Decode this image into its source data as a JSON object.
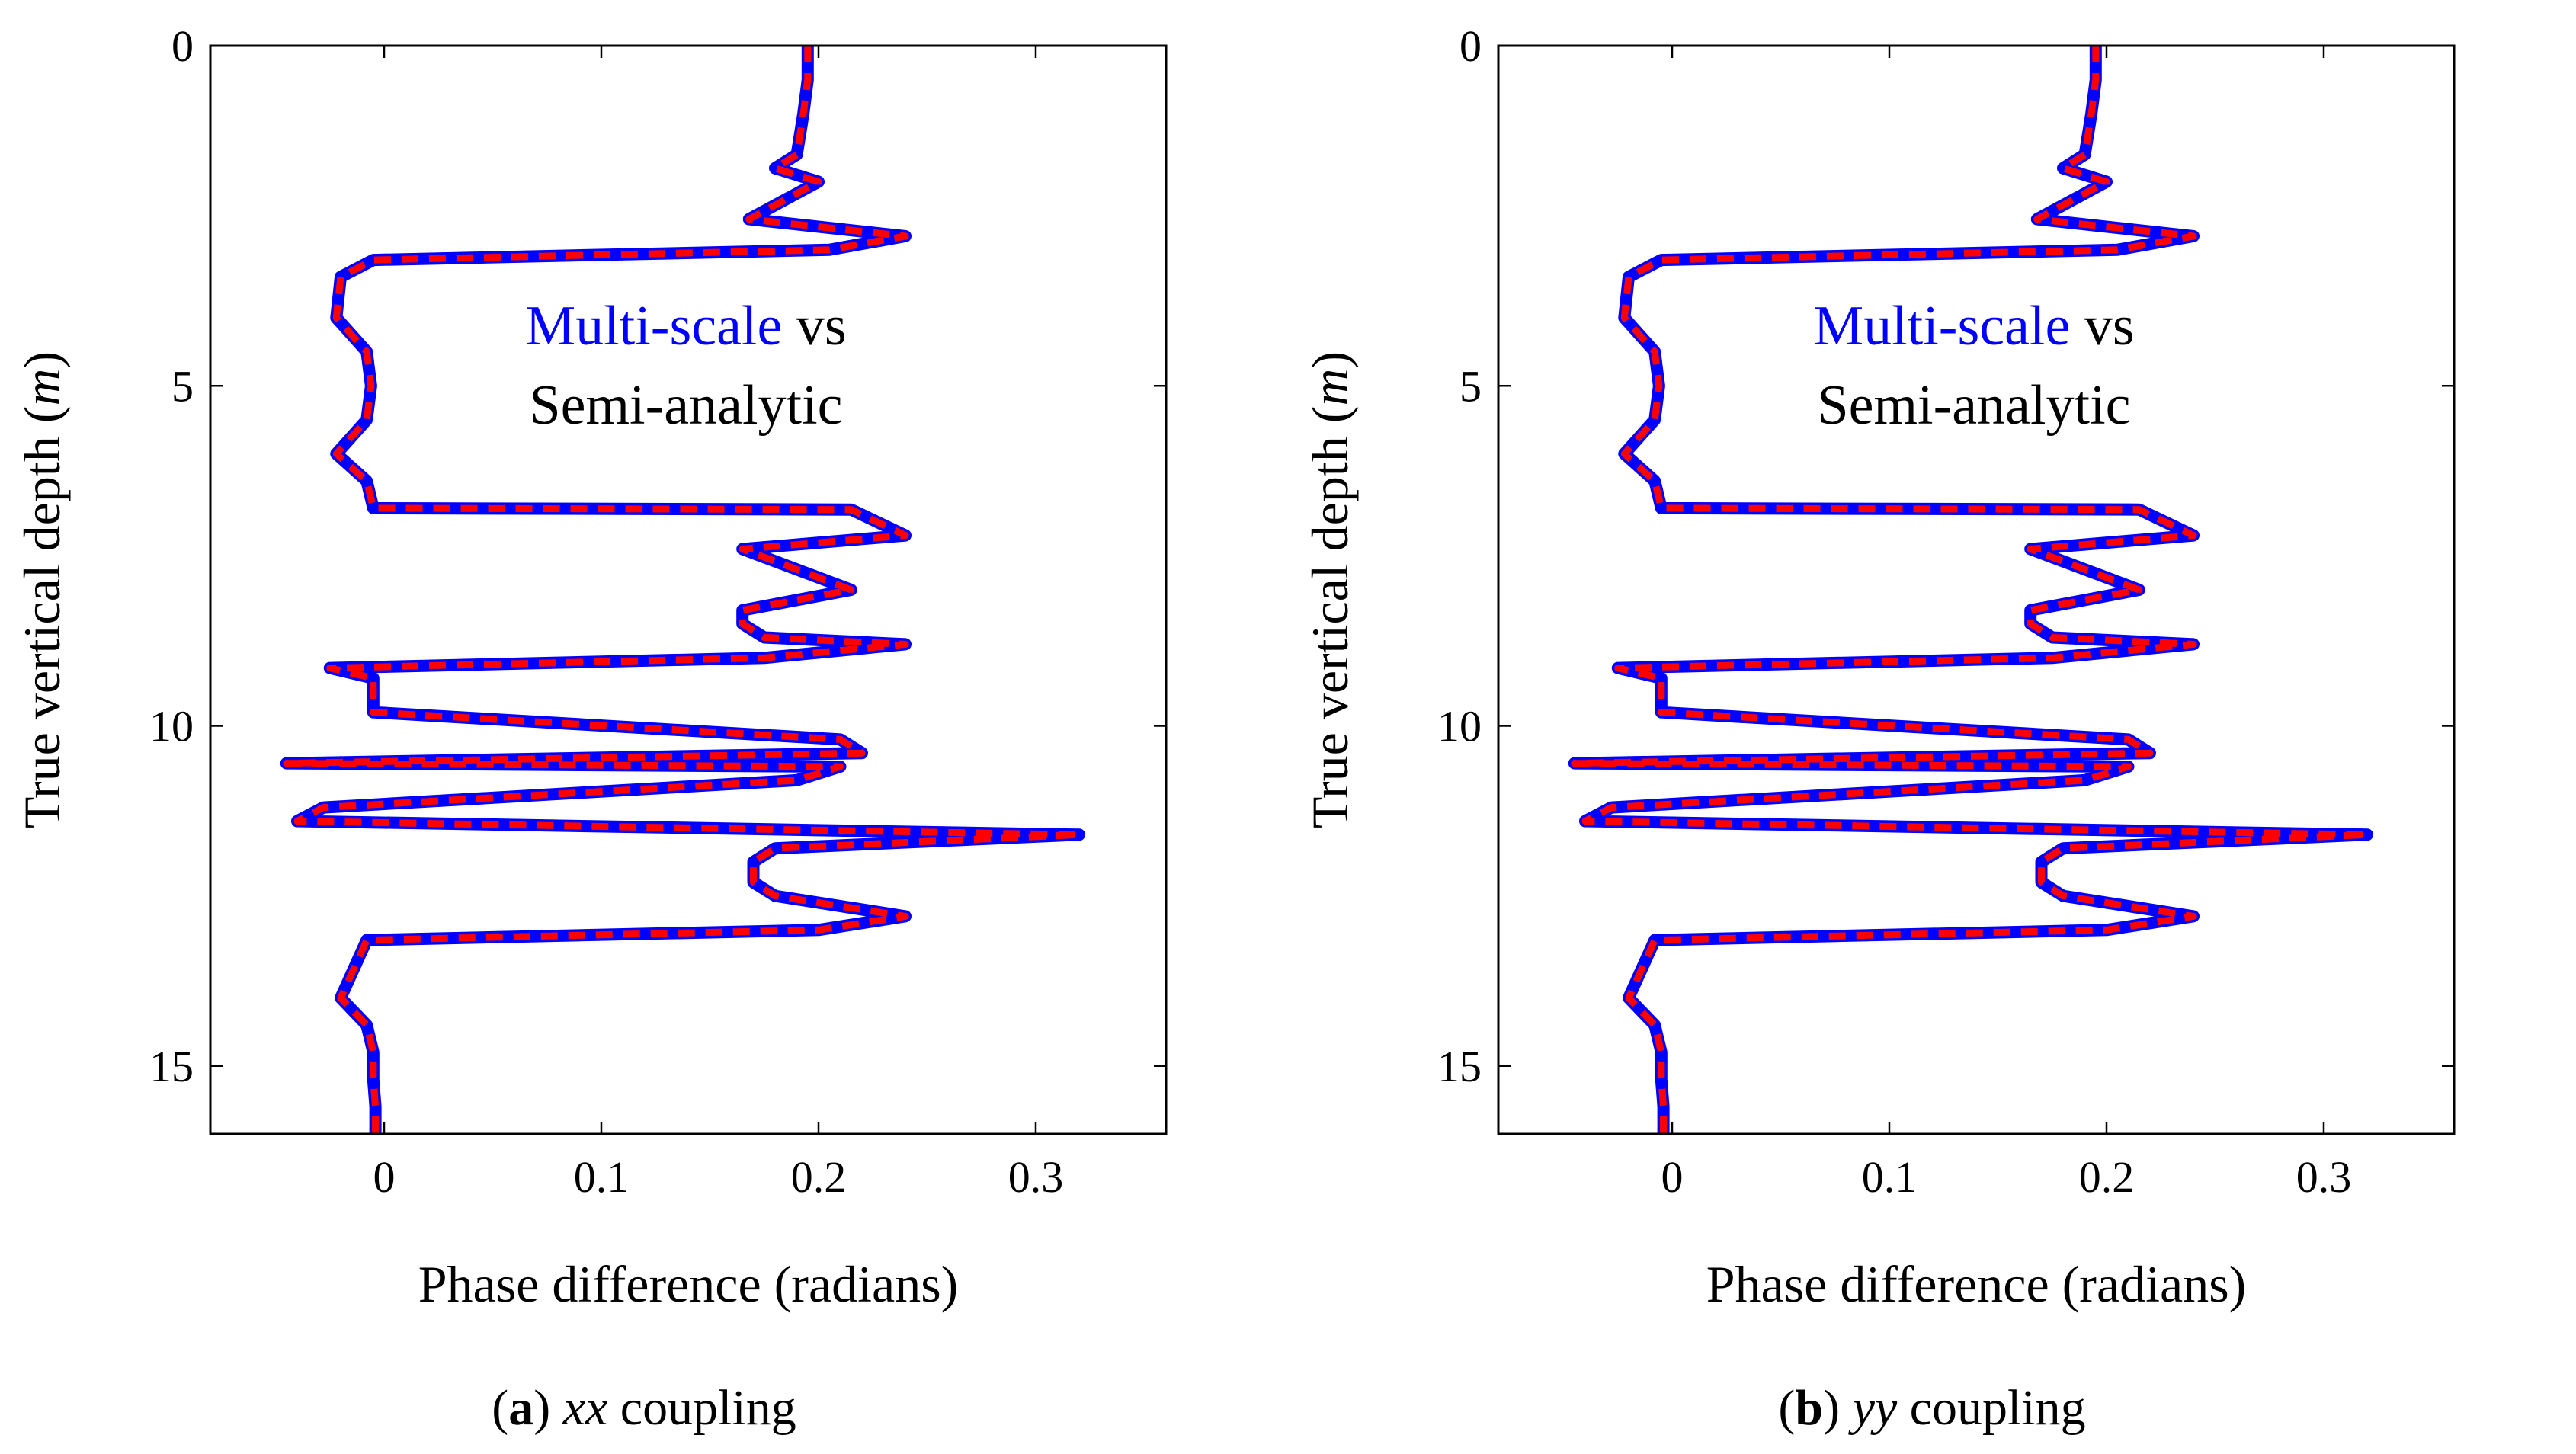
{
  "chart_data": [
    {
      "type": "line",
      "panel_label": "a",
      "caption_var": "xx",
      "caption_rest": "coupling",
      "xlabel": "Phase difference (radians)",
      "ylabel": "True vertical depth (",
      "ylabel_unit": "m",
      "ylabel_close": ")",
      "xlim": [
        -0.08,
        0.36
      ],
      "ylim": [
        0,
        16
      ],
      "y_inverted": true,
      "xticks": [
        0,
        0.1,
        0.2,
        0.3
      ],
      "xtick_labels": [
        "0",
        "0.1",
        "0.2",
        "0.3"
      ],
      "yticks": [
        0,
        5,
        10,
        15
      ],
      "ytick_labels": [
        "0",
        "5",
        "10",
        "15"
      ],
      "annotation": {
        "line1_colored": "Multi-scale",
        "line1_plain": "vs",
        "line2": "Semi-analytic"
      },
      "series": [
        {
          "name": "Multi-scale",
          "color": "#0000ff",
          "style": "solid",
          "x": [
            0.195,
            0.195,
            0.193,
            0.19,
            0.18,
            0.2,
            0.168,
            0.24,
            0.205,
            -0.005,
            -0.02,
            -0.022,
            -0.008,
            -0.006,
            -0.008,
            -0.022,
            -0.008,
            -0.005,
            0.215,
            0.24,
            0.165,
            0.215,
            0.165,
            0.165,
            0.175,
            0.24,
            0.175,
            -0.025,
            -0.005,
            -0.005,
            0.21,
            0.22,
            -0.045,
            0.21,
            0.19,
            -0.028,
            -0.04,
            0.32,
            0.18,
            0.17,
            0.17,
            0.18,
            0.24,
            0.2,
            -0.008,
            -0.02,
            -0.008,
            -0.005,
            -0.005,
            -0.004,
            -0.004
          ],
          "y": [
            0,
            0.5,
            1.0,
            1.6,
            1.8,
            2.0,
            2.55,
            2.8,
            3.0,
            3.15,
            3.4,
            4.0,
            4.5,
            5.0,
            5.5,
            6.0,
            6.4,
            6.8,
            6.82,
            7.2,
            7.4,
            8.0,
            8.3,
            8.5,
            8.7,
            8.8,
            9.0,
            9.15,
            9.3,
            9.8,
            10.2,
            10.4,
            10.55,
            10.6,
            10.8,
            11.2,
            11.4,
            11.6,
            11.8,
            12.0,
            12.3,
            12.5,
            12.8,
            13.0,
            13.15,
            14.0,
            14.4,
            14.8,
            15.2,
            15.6,
            16.0
          ]
        },
        {
          "name": "Semi-analytic",
          "color": "#ff0000",
          "style": "dashed",
          "x": [
            0.195,
            0.195,
            0.193,
            0.19,
            0.18,
            0.2,
            0.168,
            0.24,
            0.205,
            -0.005,
            -0.02,
            -0.022,
            -0.008,
            -0.006,
            -0.008,
            -0.022,
            -0.008,
            -0.005,
            0.215,
            0.24,
            0.165,
            0.215,
            0.165,
            0.165,
            0.175,
            0.24,
            0.175,
            -0.025,
            -0.005,
            -0.005,
            0.21,
            0.22,
            -0.045,
            0.21,
            0.19,
            -0.028,
            -0.04,
            0.32,
            0.18,
            0.17,
            0.17,
            0.18,
            0.24,
            0.2,
            -0.008,
            -0.02,
            -0.008,
            -0.005,
            -0.005,
            -0.004,
            -0.004
          ],
          "y": [
            0,
            0.5,
            1.0,
            1.6,
            1.8,
            2.0,
            2.55,
            2.8,
            3.0,
            3.15,
            3.4,
            4.0,
            4.5,
            5.0,
            5.5,
            6.0,
            6.4,
            6.8,
            6.82,
            7.2,
            7.4,
            8.0,
            8.3,
            8.5,
            8.7,
            8.8,
            9.0,
            9.15,
            9.3,
            9.8,
            10.2,
            10.4,
            10.55,
            10.6,
            10.8,
            11.2,
            11.4,
            11.6,
            11.8,
            12.0,
            12.3,
            12.5,
            12.8,
            13.0,
            13.15,
            14.0,
            14.4,
            14.8,
            15.2,
            15.6,
            16.0
          ]
        }
      ]
    },
    {
      "type": "line",
      "panel_label": "b",
      "caption_var": "yy",
      "caption_rest": "coupling",
      "xlabel": "Phase difference (radians)",
      "ylabel": "True vertical depth (",
      "ylabel_unit": "m",
      "ylabel_close": ")",
      "xlim": [
        -0.08,
        0.36
      ],
      "ylim": [
        0,
        16
      ],
      "y_inverted": true,
      "xticks": [
        0,
        0.1,
        0.2,
        0.3
      ],
      "xtick_labels": [
        "0",
        "0.1",
        "0.2",
        "0.3"
      ],
      "yticks": [
        0,
        5,
        10,
        15
      ],
      "ytick_labels": [
        "0",
        "5",
        "10",
        "15"
      ],
      "annotation": {
        "line1_colored": "Multi-scale",
        "line1_plain": "vs",
        "line2": "Semi-analytic"
      },
      "series": [
        {
          "name": "Multi-scale",
          "color": "#0000ff",
          "style": "solid",
          "x": [
            0.195,
            0.195,
            0.193,
            0.19,
            0.18,
            0.2,
            0.168,
            0.24,
            0.205,
            -0.005,
            -0.02,
            -0.022,
            -0.008,
            -0.006,
            -0.008,
            -0.022,
            -0.008,
            -0.005,
            0.215,
            0.24,
            0.165,
            0.215,
            0.165,
            0.165,
            0.175,
            0.24,
            0.175,
            -0.025,
            -0.005,
            -0.005,
            0.21,
            0.22,
            -0.045,
            0.21,
            0.19,
            -0.028,
            -0.04,
            0.32,
            0.18,
            0.17,
            0.17,
            0.18,
            0.24,
            0.2,
            -0.008,
            -0.02,
            -0.008,
            -0.005,
            -0.005,
            -0.004,
            -0.004
          ],
          "y": [
            0,
            0.5,
            1.0,
            1.6,
            1.8,
            2.0,
            2.55,
            2.8,
            3.0,
            3.15,
            3.4,
            4.0,
            4.5,
            5.0,
            5.5,
            6.0,
            6.4,
            6.8,
            6.82,
            7.2,
            7.4,
            8.0,
            8.3,
            8.5,
            8.7,
            8.8,
            9.0,
            9.15,
            9.3,
            9.8,
            10.2,
            10.4,
            10.55,
            10.6,
            10.8,
            11.2,
            11.4,
            11.6,
            11.8,
            12.0,
            12.3,
            12.5,
            12.8,
            13.0,
            13.15,
            14.0,
            14.4,
            14.8,
            15.2,
            15.6,
            16.0
          ]
        },
        {
          "name": "Semi-analytic",
          "color": "#ff0000",
          "style": "dashed",
          "x": [
            0.195,
            0.195,
            0.193,
            0.19,
            0.18,
            0.2,
            0.168,
            0.24,
            0.205,
            -0.005,
            -0.02,
            -0.022,
            -0.008,
            -0.006,
            -0.008,
            -0.022,
            -0.008,
            -0.005,
            0.215,
            0.24,
            0.165,
            0.215,
            0.165,
            0.165,
            0.175,
            0.24,
            0.175,
            -0.025,
            -0.005,
            -0.005,
            0.21,
            0.22,
            -0.045,
            0.21,
            0.19,
            -0.028,
            -0.04,
            0.32,
            0.18,
            0.17,
            0.17,
            0.18,
            0.24,
            0.2,
            -0.008,
            -0.02,
            -0.008,
            -0.005,
            -0.005,
            -0.004,
            -0.004
          ],
          "y": [
            0,
            0.5,
            1.0,
            1.6,
            1.8,
            2.0,
            2.55,
            2.8,
            3.0,
            3.15,
            3.4,
            4.0,
            4.5,
            5.0,
            5.5,
            6.0,
            6.4,
            6.8,
            6.82,
            7.2,
            7.4,
            8.0,
            8.3,
            8.5,
            8.7,
            8.8,
            9.0,
            9.15,
            9.3,
            9.8,
            10.2,
            10.4,
            10.55,
            10.6,
            10.8,
            11.2,
            11.4,
            11.6,
            11.8,
            12.0,
            12.3,
            12.5,
            12.8,
            13.0,
            13.15,
            14.0,
            14.4,
            14.8,
            15.2,
            15.6,
            16.0
          ]
        }
      ]
    }
  ]
}
